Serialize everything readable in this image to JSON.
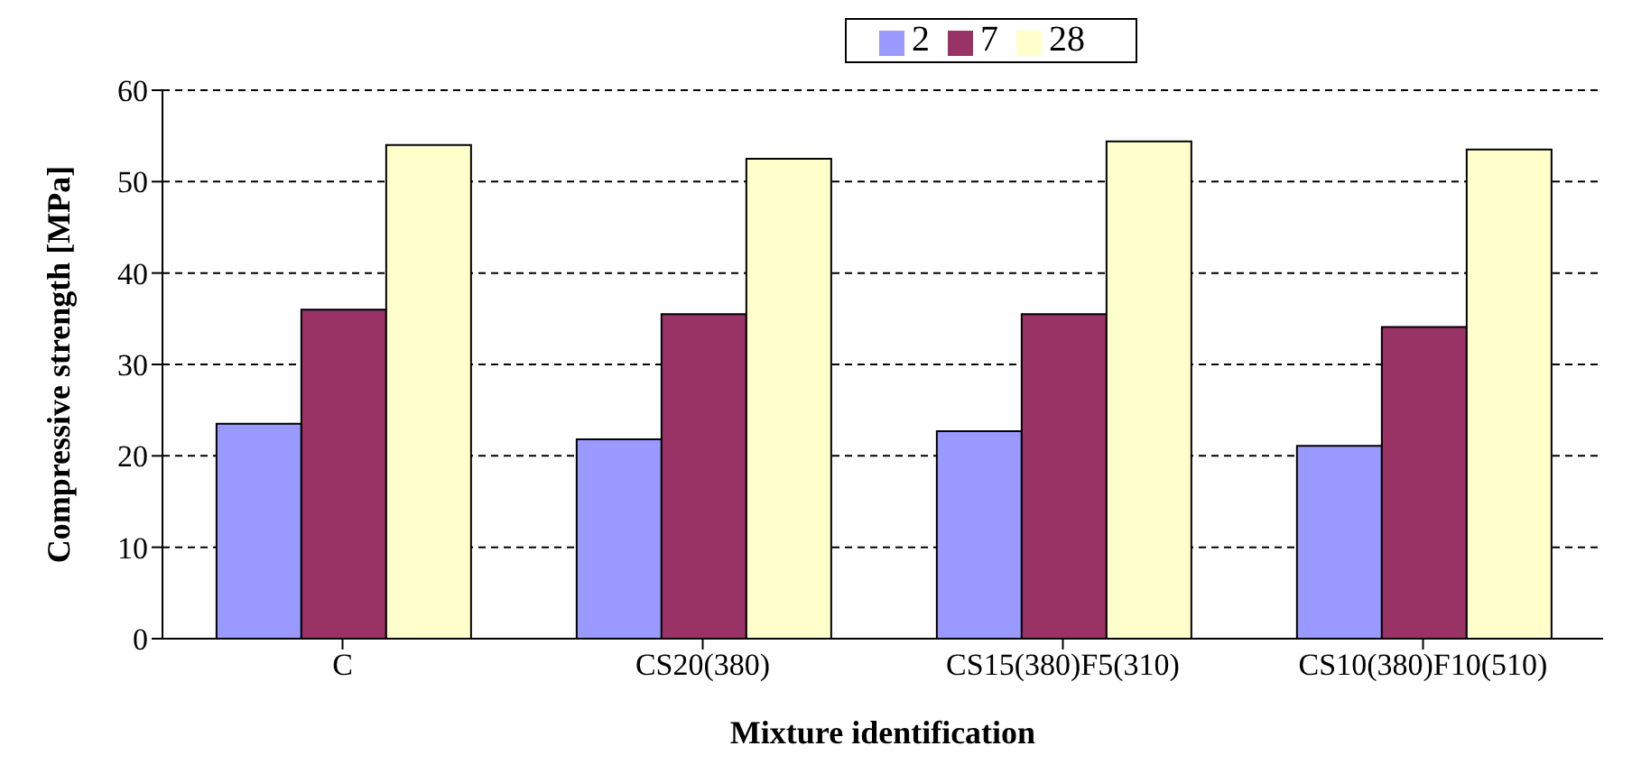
{
  "chart_data": {
    "type": "bar",
    "xlabel": "Mixture identification",
    "ylabel": "Compressive strength [MPa]",
    "categories": [
      "C",
      "CS20(380)",
      "CS15(380)F5(310)",
      "CS10(380)F10(510)"
    ],
    "series": [
      {
        "name": "2",
        "color": "#9999ff",
        "values": [
          23.5,
          21.8,
          22.7,
          21.1
        ]
      },
      {
        "name": "7",
        "color": "#993366",
        "values": [
          36.0,
          35.5,
          35.5,
          34.1
        ]
      },
      {
        "name": "28",
        "color": "#ffffcc",
        "values": [
          54.0,
          52.5,
          54.4,
          53.5
        ]
      }
    ],
    "ylim": [
      0,
      60
    ],
    "yticks": [
      0,
      10,
      20,
      30,
      40,
      50,
      60
    ],
    "grid": "y",
    "legend": "top"
  }
}
